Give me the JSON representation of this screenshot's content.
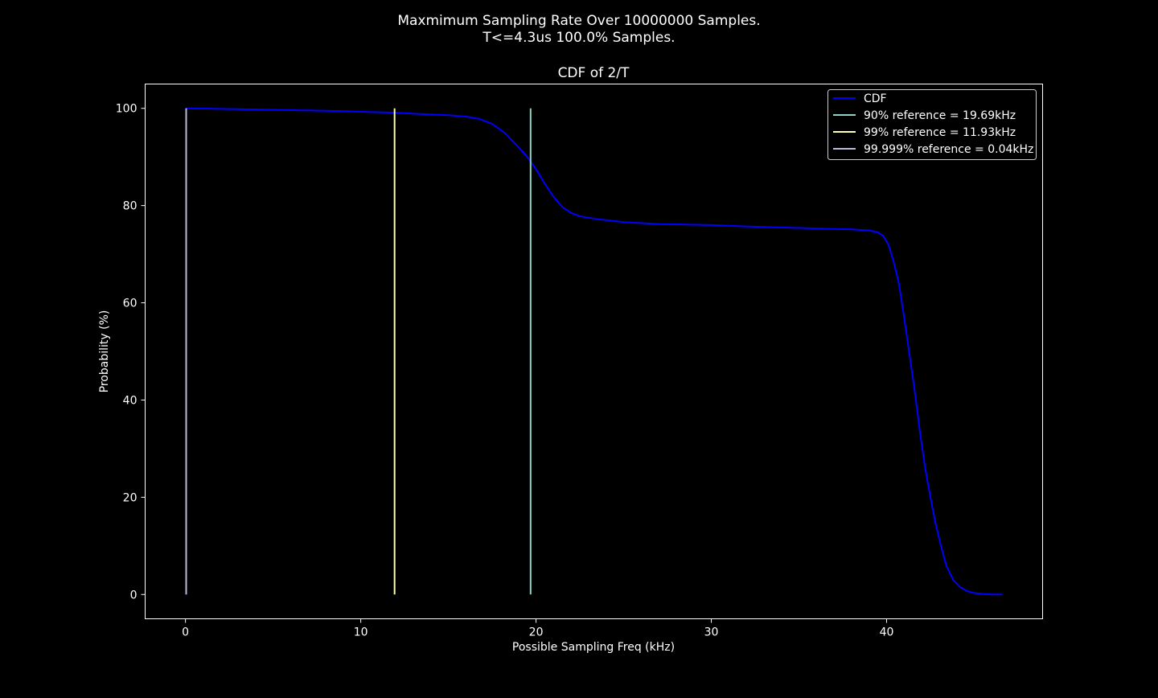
{
  "figure": {
    "suptitle_line1": "Maxmimum Sampling Rate Over 10000000 Samples.",
    "suptitle_line2": "T<=4.3us 100.0% Samples."
  },
  "chart_data": {
    "type": "line",
    "title": "CDF of 2/T",
    "xlabel": "Possible Sampling Freq (kHz)",
    "ylabel": "Probability (%)",
    "xlim": [
      -2.3,
      48.9
    ],
    "ylim": [
      -5,
      105
    ],
    "xticks": [
      0,
      10,
      20,
      30,
      40
    ],
    "yticks": [
      0,
      20,
      40,
      60,
      80,
      100
    ],
    "grid": false,
    "legend_position": "top-right",
    "colors": {
      "background": "#000000",
      "axes": "#ffffff",
      "cdf": "#0000ff",
      "ref90": "#8dd3c7",
      "ref99": "#ffffb3",
      "ref99999": "#bebada"
    },
    "series": [
      {
        "name": "CDF",
        "color": "#0000ff",
        "x": [
          0.0,
          2.0,
          5.0,
          8.0,
          9.3,
          10.0,
          12.0,
          13.0,
          15.0,
          16.0,
          16.8,
          17.5,
          18.2,
          19.0,
          19.5,
          20.0,
          20.5,
          21.0,
          21.5,
          22.0,
          22.5,
          23.5,
          25.0,
          27.0,
          30.0,
          32.0,
          35.0,
          38.0,
          39.0,
          39.5,
          39.8,
          40.1,
          40.4,
          40.7,
          41.0,
          41.3,
          41.6,
          41.9,
          42.2,
          42.5,
          42.8,
          43.1,
          43.4,
          43.8,
          44.2,
          44.6,
          45.0,
          45.5,
          46.0,
          46.6
        ],
        "y": [
          100.0,
          99.9,
          99.7,
          99.5,
          99.4,
          99.3,
          99.1,
          98.9,
          98.6,
          98.3,
          97.8,
          96.8,
          95.0,
          92.0,
          90.0,
          87.5,
          84.5,
          81.8,
          79.7,
          78.5,
          77.8,
          77.2,
          76.6,
          76.2,
          76.0,
          75.7,
          75.4,
          75.1,
          74.9,
          74.5,
          73.8,
          72.0,
          68.5,
          64.0,
          57.0,
          49.5,
          42.0,
          33.5,
          26.0,
          20.0,
          14.5,
          10.0,
          6.0,
          3.0,
          1.5,
          0.7,
          0.3,
          0.1,
          0.0,
          0.0
        ]
      },
      {
        "name": "90% reference = 19.69kHz",
        "color": "#8dd3c7",
        "type": "vline",
        "x": 19.69,
        "y_range": [
          0,
          100
        ]
      },
      {
        "name": "99% reference = 11.93kHz",
        "color": "#ffffb3",
        "type": "vline",
        "x": 11.93,
        "y_range": [
          0,
          100
        ]
      },
      {
        "name": "99.999% reference = 0.04kHz",
        "color": "#bebada",
        "type": "vline",
        "x": 0.04,
        "y_range": [
          0,
          100
        ]
      }
    ]
  }
}
